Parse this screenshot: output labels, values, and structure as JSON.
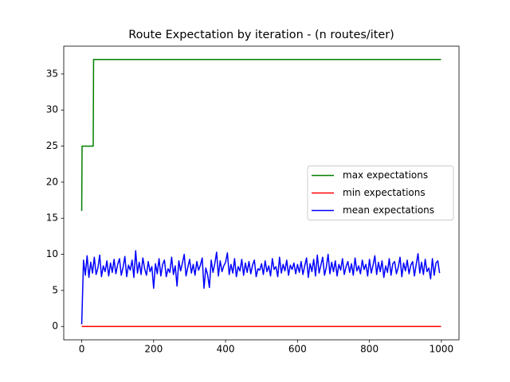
{
  "chart_data": {
    "type": "line",
    "title": "Route Expectation by iteration - (n routes/iter)",
    "xlim": [
      -49.95,
      1048.95
    ],
    "ylim": [
      -1.85,
      38.85
    ],
    "xticks": [
      0,
      200,
      400,
      600,
      800,
      1000
    ],
    "yticks": [
      0,
      5,
      10,
      15,
      20,
      25,
      30,
      35
    ],
    "legend": "center right",
    "series": [
      {
        "name": "max expectations",
        "color": "#008000",
        "x": [
          0,
          1,
          32,
          33,
          999
        ],
        "values": [
          16,
          25,
          25,
          37,
          37
        ]
      },
      {
        "name": "min expectations",
        "color": "#ff0000",
        "x": [
          0,
          999
        ],
        "values": [
          0,
          0
        ]
      },
      {
        "name": "mean expectations",
        "color": "#0000ff",
        "x": [
          0,
          5,
          10,
          15,
          20,
          25,
          30,
          35,
          40,
          45,
          50,
          55,
          60,
          65,
          70,
          75,
          80,
          85,
          90,
          95,
          100,
          105,
          110,
          115,
          120,
          125,
          130,
          135,
          140,
          145,
          150,
          155,
          160,
          165,
          170,
          175,
          180,
          185,
          190,
          195,
          200,
          205,
          210,
          215,
          220,
          225,
          230,
          235,
          240,
          245,
          250,
          255,
          260,
          265,
          270,
          275,
          280,
          285,
          290,
          295,
          300,
          305,
          310,
          315,
          320,
          325,
          330,
          335,
          340,
          345,
          350,
          355,
          360,
          365,
          370,
          375,
          380,
          385,
          390,
          395,
          400,
          405,
          410,
          415,
          420,
          425,
          430,
          435,
          440,
          445,
          450,
          455,
          460,
          465,
          470,
          475,
          480,
          485,
          490,
          495,
          500,
          505,
          510,
          515,
          520,
          525,
          530,
          535,
          540,
          545,
          550,
          555,
          560,
          565,
          570,
          575,
          580,
          585,
          590,
          595,
          600,
          605,
          610,
          615,
          620,
          625,
          630,
          635,
          640,
          645,
          650,
          655,
          660,
          665,
          670,
          675,
          680,
          685,
          690,
          695,
          700,
          705,
          710,
          715,
          720,
          725,
          730,
          735,
          740,
          745,
          750,
          755,
          760,
          765,
          770,
          775,
          780,
          785,
          790,
          795,
          800,
          805,
          810,
          815,
          820,
          825,
          830,
          835,
          840,
          845,
          850,
          855,
          860,
          865,
          870,
          875,
          880,
          885,
          890,
          895,
          900,
          905,
          910,
          915,
          920,
          925,
          930,
          935,
          940,
          945,
          950,
          955,
          960,
          965,
          970,
          975,
          980,
          985,
          990,
          995
        ],
        "values": [
          0.3,
          9.2,
          7.1,
          9.8,
          6.8,
          8.9,
          7.4,
          9.6,
          7.2,
          8.1,
          9.9,
          6.9,
          8.4,
          7.6,
          9.1,
          7.0,
          8.8,
          7.5,
          9.3,
          7.3,
          8.6,
          9.4,
          7.1,
          8.2,
          9.7,
          6.9,
          8.5,
          7.8,
          9.2,
          6.8,
          10.5,
          7.4,
          8.9,
          7.2,
          9.5,
          8.0,
          7.1,
          9.0,
          7.6,
          8.3,
          5.3,
          8.7,
          7.3,
          9.4,
          7.0,
          8.6,
          9.2,
          6.9,
          8.0,
          7.5,
          9.6,
          7.2,
          8.4,
          5.6,
          9.1,
          7.7,
          8.8,
          10.0,
          7.0,
          8.2,
          9.3,
          7.4,
          8.6,
          7.1,
          9.0,
          7.8,
          8.5,
          9.5,
          5.3,
          8.1,
          7.2,
          5.4,
          9.2,
          7.5,
          8.7,
          10.3,
          7.0,
          9.1,
          7.6,
          8.4,
          8.9,
          10.2,
          7.2,
          8.6,
          7.4,
          9.4,
          6.9,
          8.3,
          7.7,
          9.3,
          7.1,
          8.8,
          7.5,
          9.0,
          7.3,
          8.5,
          9.2,
          6.9,
          8.0,
          7.8,
          8.7,
          7.2,
          9.1,
          7.6,
          8.4,
          7.0,
          9.4,
          7.9,
          8.3,
          6.9,
          9.6,
          7.4,
          8.6,
          7.7,
          9.2,
          7.1,
          8.5,
          7.9,
          8.8,
          7.3,
          8.6,
          7.5,
          9.0,
          7.2,
          8.4,
          9.5,
          6.8,
          8.7,
          7.6,
          9.3,
          7.0,
          9.9,
          7.4,
          8.5,
          9.6,
          7.1,
          8.2,
          10.0,
          7.3,
          8.9,
          7.6,
          9.1,
          7.0,
          8.6,
          7.8,
          9.4,
          7.2,
          8.3,
          9.0,
          7.5,
          8.7,
          7.1,
          9.5,
          7.7,
          8.4,
          7.3,
          9.2,
          7.9,
          8.6,
          7.0,
          9.3,
          7.4,
          8.5,
          9.8,
          7.2,
          8.9,
          7.6,
          9.1,
          6.8,
          8.4,
          7.5,
          9.4,
          7.1,
          8.7,
          9.0,
          7.3,
          8.2,
          9.6,
          6.9,
          8.8,
          7.7,
          9.2,
          7.3,
          8.5,
          9.0,
          7.0,
          8.6,
          10.1,
          7.4,
          8.9,
          7.2,
          9.3,
          7.6,
          8.1,
          6.6,
          9.4,
          7.1,
          8.8,
          9.1,
          7.4
        ]
      }
    ]
  }
}
